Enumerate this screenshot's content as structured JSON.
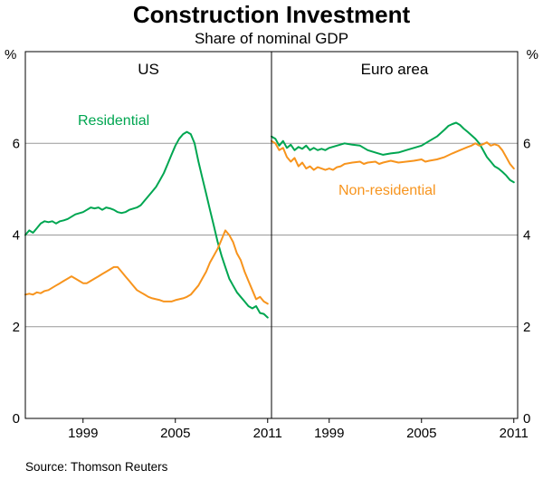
{
  "title": "Construction Investment",
  "subtitle": "Share of nominal GDP",
  "y_axis_unit": "%",
  "source": "Source: Thomson Reuters",
  "style": {
    "axis_color": "#000000",
    "grid_color": "#999999",
    "residential_color": "#00a651",
    "non_residential_color": "#f7941d"
  },
  "chart_data": [
    {
      "type": "line",
      "panel": "US",
      "xlim": [
        1995.25,
        2011.25
      ],
      "xticks": [
        1999,
        2005,
        2011
      ],
      "ylim": [
        0,
        8
      ],
      "yticks": [
        0,
        2,
        4,
        6
      ],
      "grid": true,
      "series": [
        {
          "name": "Residential",
          "color": "#00a651",
          "points": [
            [
              1995.25,
              4.0
            ],
            [
              1995.5,
              4.1
            ],
            [
              1995.75,
              4.05
            ],
            [
              1996,
              4.15
            ],
            [
              1996.25,
              4.25
            ],
            [
              1996.5,
              4.3
            ],
            [
              1996.75,
              4.28
            ],
            [
              1997,
              4.3
            ],
            [
              1997.25,
              4.25
            ],
            [
              1997.5,
              4.3
            ],
            [
              1997.75,
              4.32
            ],
            [
              1998,
              4.35
            ],
            [
              1998.5,
              4.45
            ],
            [
              1999,
              4.5
            ],
            [
              1999.25,
              4.55
            ],
            [
              1999.5,
              4.6
            ],
            [
              1999.75,
              4.58
            ],
            [
              2000,
              4.6
            ],
            [
              2000.25,
              4.55
            ],
            [
              2000.5,
              4.6
            ],
            [
              2000.75,
              4.58
            ],
            [
              2001,
              4.55
            ],
            [
              2001.25,
              4.5
            ],
            [
              2001.5,
              4.48
            ],
            [
              2001.75,
              4.5
            ],
            [
              2002,
              4.55
            ],
            [
              2002.5,
              4.6
            ],
            [
              2002.75,
              4.65
            ],
            [
              2003,
              4.75
            ],
            [
              2003.25,
              4.85
            ],
            [
              2003.5,
              4.95
            ],
            [
              2003.75,
              5.05
            ],
            [
              2004,
              5.2
            ],
            [
              2004.25,
              5.35
            ],
            [
              2004.5,
              5.55
            ],
            [
              2004.75,
              5.75
            ],
            [
              2005,
              5.95
            ],
            [
              2005.25,
              6.1
            ],
            [
              2005.5,
              6.2
            ],
            [
              2005.75,
              6.25
            ],
            [
              2006,
              6.2
            ],
            [
              2006.25,
              6.0
            ],
            [
              2006.5,
              5.6
            ],
            [
              2006.75,
              5.25
            ],
            [
              2007,
              4.9
            ],
            [
              2007.25,
              4.55
            ],
            [
              2007.5,
              4.2
            ],
            [
              2007.75,
              3.85
            ],
            [
              2008,
              3.55
            ],
            [
              2008.25,
              3.3
            ],
            [
              2008.5,
              3.05
            ],
            [
              2008.75,
              2.9
            ],
            [
              2009,
              2.75
            ],
            [
              2009.25,
              2.65
            ],
            [
              2009.5,
              2.55
            ],
            [
              2009.75,
              2.45
            ],
            [
              2010,
              2.4
            ],
            [
              2010.25,
              2.45
            ],
            [
              2010.5,
              2.3
            ],
            [
              2010.75,
              2.28
            ],
            [
              2011,
              2.2
            ]
          ]
        },
        {
          "name": "Non-residential",
          "color": "#f7941d",
          "points": [
            [
              1995.25,
              2.7
            ],
            [
              1995.5,
              2.72
            ],
            [
              1995.75,
              2.7
            ],
            [
              1996,
              2.75
            ],
            [
              1996.25,
              2.73
            ],
            [
              1996.5,
              2.78
            ],
            [
              1996.75,
              2.8
            ],
            [
              1997,
              2.85
            ],
            [
              1997.25,
              2.9
            ],
            [
              1997.5,
              2.95
            ],
            [
              1997.75,
              3.0
            ],
            [
              1998,
              3.05
            ],
            [
              1998.25,
              3.1
            ],
            [
              1998.5,
              3.05
            ],
            [
              1998.75,
              3.0
            ],
            [
              1999,
              2.95
            ],
            [
              1999.25,
              2.95
            ],
            [
              1999.5,
              3.0
            ],
            [
              1999.75,
              3.05
            ],
            [
              2000,
              3.1
            ],
            [
              2000.25,
              3.15
            ],
            [
              2000.5,
              3.2
            ],
            [
              2000.75,
              3.25
            ],
            [
              2001,
              3.3
            ],
            [
              2001.25,
              3.3
            ],
            [
              2001.5,
              3.2
            ],
            [
              2001.75,
              3.1
            ],
            [
              2002,
              3.0
            ],
            [
              2002.25,
              2.9
            ],
            [
              2002.5,
              2.8
            ],
            [
              2002.75,
              2.75
            ],
            [
              2003,
              2.7
            ],
            [
              2003.25,
              2.65
            ],
            [
              2003.5,
              2.62
            ],
            [
              2003.75,
              2.6
            ],
            [
              2004,
              2.58
            ],
            [
              2004.25,
              2.55
            ],
            [
              2004.5,
              2.55
            ],
            [
              2004.75,
              2.55
            ],
            [
              2005,
              2.58
            ],
            [
              2005.25,
              2.6
            ],
            [
              2005.5,
              2.62
            ],
            [
              2005.75,
              2.65
            ],
            [
              2006,
              2.7
            ],
            [
              2006.25,
              2.8
            ],
            [
              2006.5,
              2.9
            ],
            [
              2006.75,
              3.05
            ],
            [
              2007,
              3.2
            ],
            [
              2007.25,
              3.4
            ],
            [
              2007.5,
              3.55
            ],
            [
              2007.75,
              3.7
            ],
            [
              2008,
              3.9
            ],
            [
              2008.25,
              4.1
            ],
            [
              2008.5,
              4.0
            ],
            [
              2008.75,
              3.85
            ],
            [
              2009,
              3.6
            ],
            [
              2009.25,
              3.45
            ],
            [
              2009.5,
              3.2
            ],
            [
              2009.75,
              3.0
            ],
            [
              2010,
              2.8
            ],
            [
              2010.25,
              2.6
            ],
            [
              2010.5,
              2.65
            ],
            [
              2010.75,
              2.55
            ],
            [
              2011,
              2.5
            ]
          ]
        }
      ]
    },
    {
      "type": "line",
      "panel": "Euro area",
      "xlim": [
        1995.25,
        2011.25
      ],
      "xticks": [
        1999,
        2005,
        2011
      ],
      "ylim": [
        0,
        8
      ],
      "yticks": [
        0,
        2,
        4,
        6
      ],
      "grid": true,
      "series": [
        {
          "name": "Residential",
          "color": "#00a651",
          "points": [
            [
              1995.25,
              6.15
            ],
            [
              1995.5,
              6.1
            ],
            [
              1995.75,
              5.95
            ],
            [
              1996,
              6.05
            ],
            [
              1996.25,
              5.9
            ],
            [
              1996.5,
              5.97
            ],
            [
              1996.75,
              5.85
            ],
            [
              1997,
              5.92
            ],
            [
              1997.25,
              5.88
            ],
            [
              1997.5,
              5.95
            ],
            [
              1997.75,
              5.85
            ],
            [
              1998,
              5.9
            ],
            [
              1998.25,
              5.85
            ],
            [
              1998.5,
              5.88
            ],
            [
              1998.75,
              5.85
            ],
            [
              1999,
              5.9
            ],
            [
              1999.5,
              5.95
            ],
            [
              2000,
              6.0
            ],
            [
              2000.5,
              5.97
            ],
            [
              2001,
              5.95
            ],
            [
              2001.5,
              5.85
            ],
            [
              2002,
              5.8
            ],
            [
              2002.5,
              5.75
            ],
            [
              2003,
              5.78
            ],
            [
              2003.5,
              5.8
            ],
            [
              2004,
              5.85
            ],
            [
              2004.5,
              5.9
            ],
            [
              2005,
              5.95
            ],
            [
              2005.5,
              6.05
            ],
            [
              2006,
              6.15
            ],
            [
              2006.5,
              6.3
            ],
            [
              2006.75,
              6.38
            ],
            [
              2007,
              6.42
            ],
            [
              2007.25,
              6.45
            ],
            [
              2007.5,
              6.4
            ],
            [
              2007.75,
              6.32
            ],
            [
              2008,
              6.25
            ],
            [
              2008.5,
              6.1
            ],
            [
              2008.75,
              6.0
            ],
            [
              2009,
              5.85
            ],
            [
              2009.25,
              5.7
            ],
            [
              2009.5,
              5.6
            ],
            [
              2009.75,
              5.5
            ],
            [
              2010,
              5.45
            ],
            [
              2010.25,
              5.38
            ],
            [
              2010.5,
              5.3
            ],
            [
              2010.75,
              5.2
            ],
            [
              2011,
              5.15
            ]
          ]
        },
        {
          "name": "Non-residential",
          "color": "#f7941d",
          "points": [
            [
              1995.25,
              6.05
            ],
            [
              1995.5,
              6.0
            ],
            [
              1995.75,
              5.85
            ],
            [
              1996,
              5.9
            ],
            [
              1996.25,
              5.7
            ],
            [
              1996.5,
              5.6
            ],
            [
              1996.75,
              5.68
            ],
            [
              1997,
              5.5
            ],
            [
              1997.25,
              5.58
            ],
            [
              1997.5,
              5.45
            ],
            [
              1997.75,
              5.5
            ],
            [
              1998,
              5.42
            ],
            [
              1998.25,
              5.48
            ],
            [
              1998.5,
              5.45
            ],
            [
              1998.75,
              5.42
            ],
            [
              1999,
              5.45
            ],
            [
              1999.25,
              5.42
            ],
            [
              1999.5,
              5.48
            ],
            [
              1999.75,
              5.5
            ],
            [
              2000,
              5.55
            ],
            [
              2000.5,
              5.58
            ],
            [
              2001,
              5.6
            ],
            [
              2001.25,
              5.55
            ],
            [
              2001.5,
              5.58
            ],
            [
              2002,
              5.6
            ],
            [
              2002.25,
              5.55
            ],
            [
              2002.5,
              5.58
            ],
            [
              2003,
              5.62
            ],
            [
              2003.5,
              5.58
            ],
            [
              2004,
              5.6
            ],
            [
              2004.5,
              5.62
            ],
            [
              2005,
              5.65
            ],
            [
              2005.25,
              5.6
            ],
            [
              2005.5,
              5.62
            ],
            [
              2006,
              5.65
            ],
            [
              2006.5,
              5.7
            ],
            [
              2007,
              5.78
            ],
            [
              2007.5,
              5.85
            ],
            [
              2008,
              5.92
            ],
            [
              2008.25,
              5.95
            ],
            [
              2008.5,
              6.0
            ],
            [
              2008.75,
              5.95
            ],
            [
              2009,
              5.98
            ],
            [
              2009.25,
              6.02
            ],
            [
              2009.5,
              5.95
            ],
            [
              2009.75,
              5.98
            ],
            [
              2010,
              5.95
            ],
            [
              2010.25,
              5.85
            ],
            [
              2010.5,
              5.7
            ],
            [
              2010.75,
              5.55
            ],
            [
              2011,
              5.45
            ]
          ]
        }
      ]
    }
  ]
}
